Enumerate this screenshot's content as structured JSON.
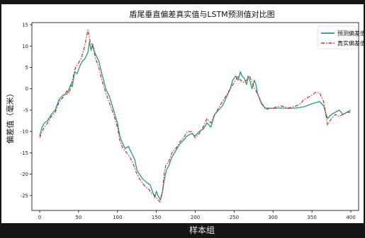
{
  "chart_data": {
    "type": "line",
    "title": "盾尾垂直偏差真实值与LSTM预测值对比图",
    "xlabel": "样本组",
    "ylabel": "偏差值（毫米）",
    "xlim": [
      -10,
      410
    ],
    "ylim": [
      -28.5,
      15.5
    ],
    "xticks": [
      0,
      50,
      100,
      150,
      200,
      250,
      300,
      350,
      400
    ],
    "yticks": [
      -25,
      -20,
      -15,
      -10,
      -5,
      0,
      5,
      10,
      15
    ],
    "legend": "top-right",
    "grid": false,
    "series": [
      {
        "name": "预测偏差值",
        "color": "#1f9e77",
        "style": "solid",
        "points": [
          [
            0,
            -11
          ],
          [
            3,
            -9
          ],
          [
            6,
            -8
          ],
          [
            10,
            -7.5
          ],
          [
            15,
            -6
          ],
          [
            20,
            -5
          ],
          [
            25,
            -2.5
          ],
          [
            30,
            -1.5
          ],
          [
            35,
            -1.2
          ],
          [
            40,
            1
          ],
          [
            42,
            0.5
          ],
          [
            45,
            4
          ],
          [
            48,
            3.5
          ],
          [
            52,
            5.5
          ],
          [
            55,
            6.5
          ],
          [
            58,
            7
          ],
          [
            62,
            8.5
          ],
          [
            64,
            11
          ],
          [
            66,
            9
          ],
          [
            68,
            10.5
          ],
          [
            70,
            9
          ],
          [
            72,
            8
          ],
          [
            76,
            6.5
          ],
          [
            80,
            3.5
          ],
          [
            85,
            0
          ],
          [
            90,
            -2
          ],
          [
            95,
            -5
          ],
          [
            100,
            -8
          ],
          [
            103,
            -11
          ],
          [
            106,
            -12.5
          ],
          [
            110,
            -14
          ],
          [
            114,
            -13.5
          ],
          [
            118,
            -15
          ],
          [
            122,
            -16.5
          ],
          [
            125,
            -19
          ],
          [
            128,
            -20
          ],
          [
            132,
            -21
          ],
          [
            135,
            -21.5
          ],
          [
            138,
            -22
          ],
          [
            142,
            -22.5
          ],
          [
            145,
            -24
          ],
          [
            148,
            -25.5
          ],
          [
            150,
            -24
          ],
          [
            152,
            -25
          ],
          [
            155,
            -26
          ],
          [
            158,
            -24
          ],
          [
            160,
            -21.5
          ],
          [
            163,
            -19
          ],
          [
            166,
            -18
          ],
          [
            170,
            -16
          ],
          [
            175,
            -14.5
          ],
          [
            180,
            -13
          ],
          [
            185,
            -12
          ],
          [
            190,
            -11
          ],
          [
            195,
            -10.5
          ],
          [
            200,
            -11
          ],
          [
            205,
            -10
          ],
          [
            210,
            -9.5
          ],
          [
            215,
            -8
          ],
          [
            220,
            -9
          ],
          [
            225,
            -6
          ],
          [
            230,
            -5
          ],
          [
            235,
            -4
          ],
          [
            240,
            -2
          ],
          [
            245,
            0
          ],
          [
            248,
            2
          ],
          [
            252,
            3
          ],
          [
            255,
            2
          ],
          [
            258,
            4
          ],
          [
            260,
            3
          ],
          [
            263,
            2.5
          ],
          [
            266,
            1
          ],
          [
            268,
            3
          ],
          [
            270,
            2
          ],
          [
            273,
            0
          ],
          [
            276,
            2
          ],
          [
            278,
            1
          ],
          [
            280,
            -1
          ],
          [
            282,
            -2
          ],
          [
            285,
            -3.5
          ],
          [
            290,
            -4.5
          ],
          [
            300,
            -4.6
          ],
          [
            310,
            -4.5
          ],
          [
            320,
            -4.6
          ],
          [
            330,
            -4.5
          ],
          [
            340,
            -4.2
          ],
          [
            350,
            -3.5
          ],
          [
            360,
            -3
          ],
          [
            365,
            -4
          ],
          [
            370,
            -7
          ],
          [
            375,
            -6
          ],
          [
            380,
            -5.5
          ],
          [
            385,
            -5
          ],
          [
            390,
            -6
          ],
          [
            395,
            -5.5
          ],
          [
            400,
            -5
          ]
        ]
      },
      {
        "name": "真实偏差值",
        "color": "#d62728",
        "style": "dashdot",
        "points": [
          [
            0,
            -11.5
          ],
          [
            3,
            -10
          ],
          [
            6,
            -9
          ],
          [
            10,
            -8
          ],
          [
            15,
            -6.5
          ],
          [
            20,
            -5.5
          ],
          [
            25,
            -3
          ],
          [
            30,
            -2
          ],
          [
            35,
            -0.5
          ],
          [
            38,
            -1
          ],
          [
            42,
            2
          ],
          [
            46,
            5
          ],
          [
            50,
            6
          ],
          [
            54,
            7.5
          ],
          [
            58,
            10
          ],
          [
            60,
            12
          ],
          [
            62,
            13.8
          ],
          [
            65,
            11
          ],
          [
            68,
            10
          ],
          [
            72,
            7
          ],
          [
            76,
            5
          ],
          [
            80,
            2
          ],
          [
            85,
            -1
          ],
          [
            90,
            -3.5
          ],
          [
            95,
            -6
          ],
          [
            100,
            -9
          ],
          [
            103,
            -12
          ],
          [
            107,
            -14
          ],
          [
            112,
            -15
          ],
          [
            116,
            -16
          ],
          [
            120,
            -17.5
          ],
          [
            124,
            -19.5
          ],
          [
            128,
            -21
          ],
          [
            132,
            -22
          ],
          [
            136,
            -23
          ],
          [
            140,
            -23.5
          ],
          [
            144,
            -24.5
          ],
          [
            148,
            -25
          ],
          [
            152,
            -26
          ],
          [
            155,
            -26.5
          ],
          [
            158,
            -24
          ],
          [
            160,
            -20
          ],
          [
            162,
            -18
          ],
          [
            166,
            -17
          ],
          [
            170,
            -15
          ],
          [
            175,
            -14
          ],
          [
            180,
            -12.5
          ],
          [
            185,
            -11.5
          ],
          [
            190,
            -10
          ],
          [
            195,
            -10
          ],
          [
            200,
            -11.5
          ],
          [
            205,
            -10.5
          ],
          [
            210,
            -9
          ],
          [
            215,
            -7
          ],
          [
            220,
            -8
          ],
          [
            225,
            -6
          ],
          [
            230,
            -4.5
          ],
          [
            235,
            -3
          ],
          [
            240,
            -1.5
          ],
          [
            245,
            0
          ],
          [
            250,
            1.5
          ],
          [
            255,
            3
          ],
          [
            258,
            2
          ],
          [
            262,
            1.5
          ],
          [
            266,
            2
          ],
          [
            270,
            3
          ],
          [
            274,
            1
          ],
          [
            278,
            -0.5
          ],
          [
            282,
            -2
          ],
          [
            286,
            -3.5
          ],
          [
            290,
            -4.8
          ],
          [
            300,
            -4.5
          ],
          [
            310,
            -4
          ],
          [
            320,
            -4.5
          ],
          [
            330,
            -4
          ],
          [
            335,
            -3.5
          ],
          [
            340,
            -2.5
          ],
          [
            345,
            -2
          ],
          [
            350,
            -1.5
          ],
          [
            355,
            -0.8
          ],
          [
            360,
            -1
          ],
          [
            365,
            -3
          ],
          [
            370,
            -8.5
          ],
          [
            375,
            -7
          ],
          [
            380,
            -6
          ],
          [
            385,
            -6.5
          ],
          [
            390,
            -6
          ],
          [
            395,
            -5.5
          ],
          [
            400,
            -5.5
          ]
        ]
      }
    ]
  }
}
